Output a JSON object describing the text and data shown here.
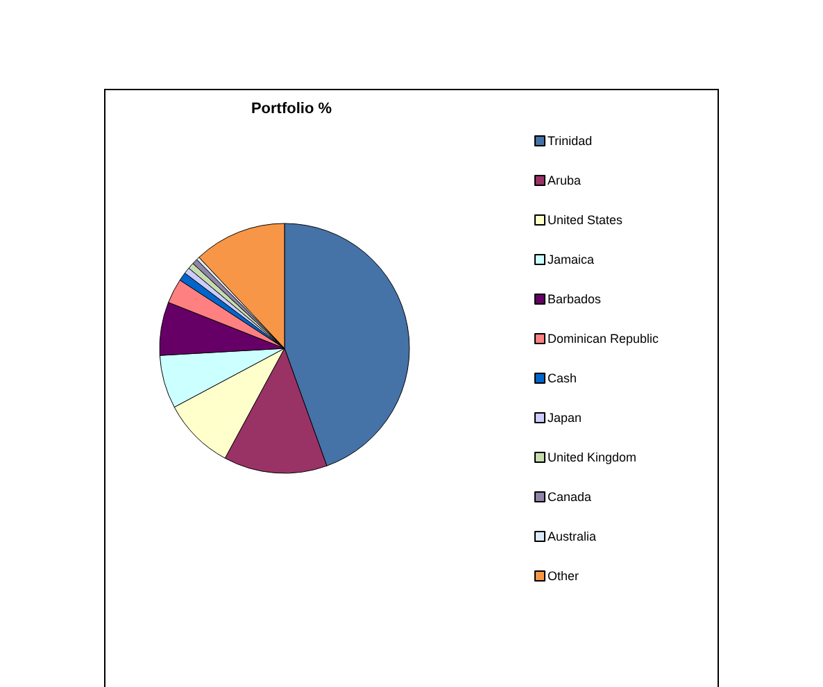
{
  "chart_data": {
    "type": "pie",
    "title": "Portfolio %",
    "categories": [
      "Trinidad",
      "Aruba",
      "United States",
      "Jamaica",
      "Barbados",
      "Dominican Republic",
      "Cash",
      "Japan",
      "United Kingdom",
      "Canada",
      "Australia",
      "Other"
    ],
    "values": [
      44.5,
      13.4,
      9.3,
      6.9,
      6.9,
      3.2,
      1.1,
      0.8,
      0.8,
      0.7,
      0.4,
      12.0
    ],
    "colors": [
      "#4572a7",
      "#993366",
      "#ffffcc",
      "#ccffff",
      "#660066",
      "#ff8080",
      "#0066cc",
      "#ccccff",
      "#c6dcae",
      "#8f84a8",
      "#dcebf7",
      "#f79646"
    ],
    "legend": "right"
  }
}
